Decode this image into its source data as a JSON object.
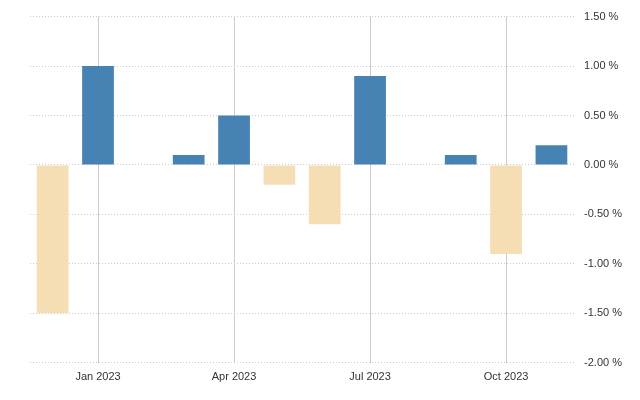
{
  "chart_data": {
    "type": "bar",
    "categories": [
      null,
      "Jan 2023",
      null,
      null,
      "Apr 2023",
      null,
      null,
      "Jul 2023",
      null,
      null,
      "Oct 2023",
      null
    ],
    "values": [
      -1.5,
      1.0,
      0,
      0.1,
      0.5,
      -0.2,
      -0.6,
      0.9,
      0,
      0.1,
      -0.9,
      0.2
    ],
    "colors": [
      "#f5deb3",
      "#4682b4",
      "#4682b4",
      "#4682b4",
      "#4682b4",
      "#f5deb3",
      "#f5deb3",
      "#4682b4",
      "#4682b4",
      "#4682b4",
      "#f5deb3",
      "#4682b4"
    ],
    "ylim": [
      -2,
      1.5
    ],
    "yticks": [
      {
        "value": -2,
        "label": "-2.00 %"
      },
      {
        "value": -1.5,
        "label": "-1.50 %"
      },
      {
        "value": -1,
        "label": "-1.00 %"
      },
      {
        "value": -0.5,
        "label": "-0.50 %"
      },
      {
        "value": 0,
        "label": "0.00 %"
      },
      {
        "value": 0.5,
        "label": "0.50 %"
      },
      {
        "value": 1,
        "label": "1.00 %"
      },
      {
        "value": 1.5,
        "label": "1.50 %"
      }
    ],
    "grid": true
  }
}
